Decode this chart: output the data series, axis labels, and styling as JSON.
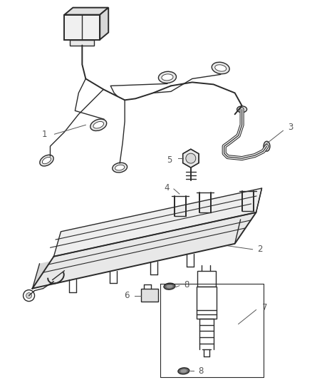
{
  "background_color": "#ffffff",
  "line_color": "#2a2a2a",
  "label_color": "#555555",
  "fig_width": 4.39,
  "fig_height": 5.33,
  "dpi": 100
}
